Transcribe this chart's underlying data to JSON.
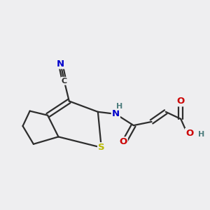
{
  "bg_color": "#eeeef0",
  "bond_color": "#2d2d2d",
  "bond_width": 1.6,
  "atom_colors": {
    "S": "#b8b800",
    "N": "#0000cc",
    "O": "#cc0000",
    "H": "#4d7d7d",
    "C": "#2d2d2d"
  },
  "font_size": 9.5
}
